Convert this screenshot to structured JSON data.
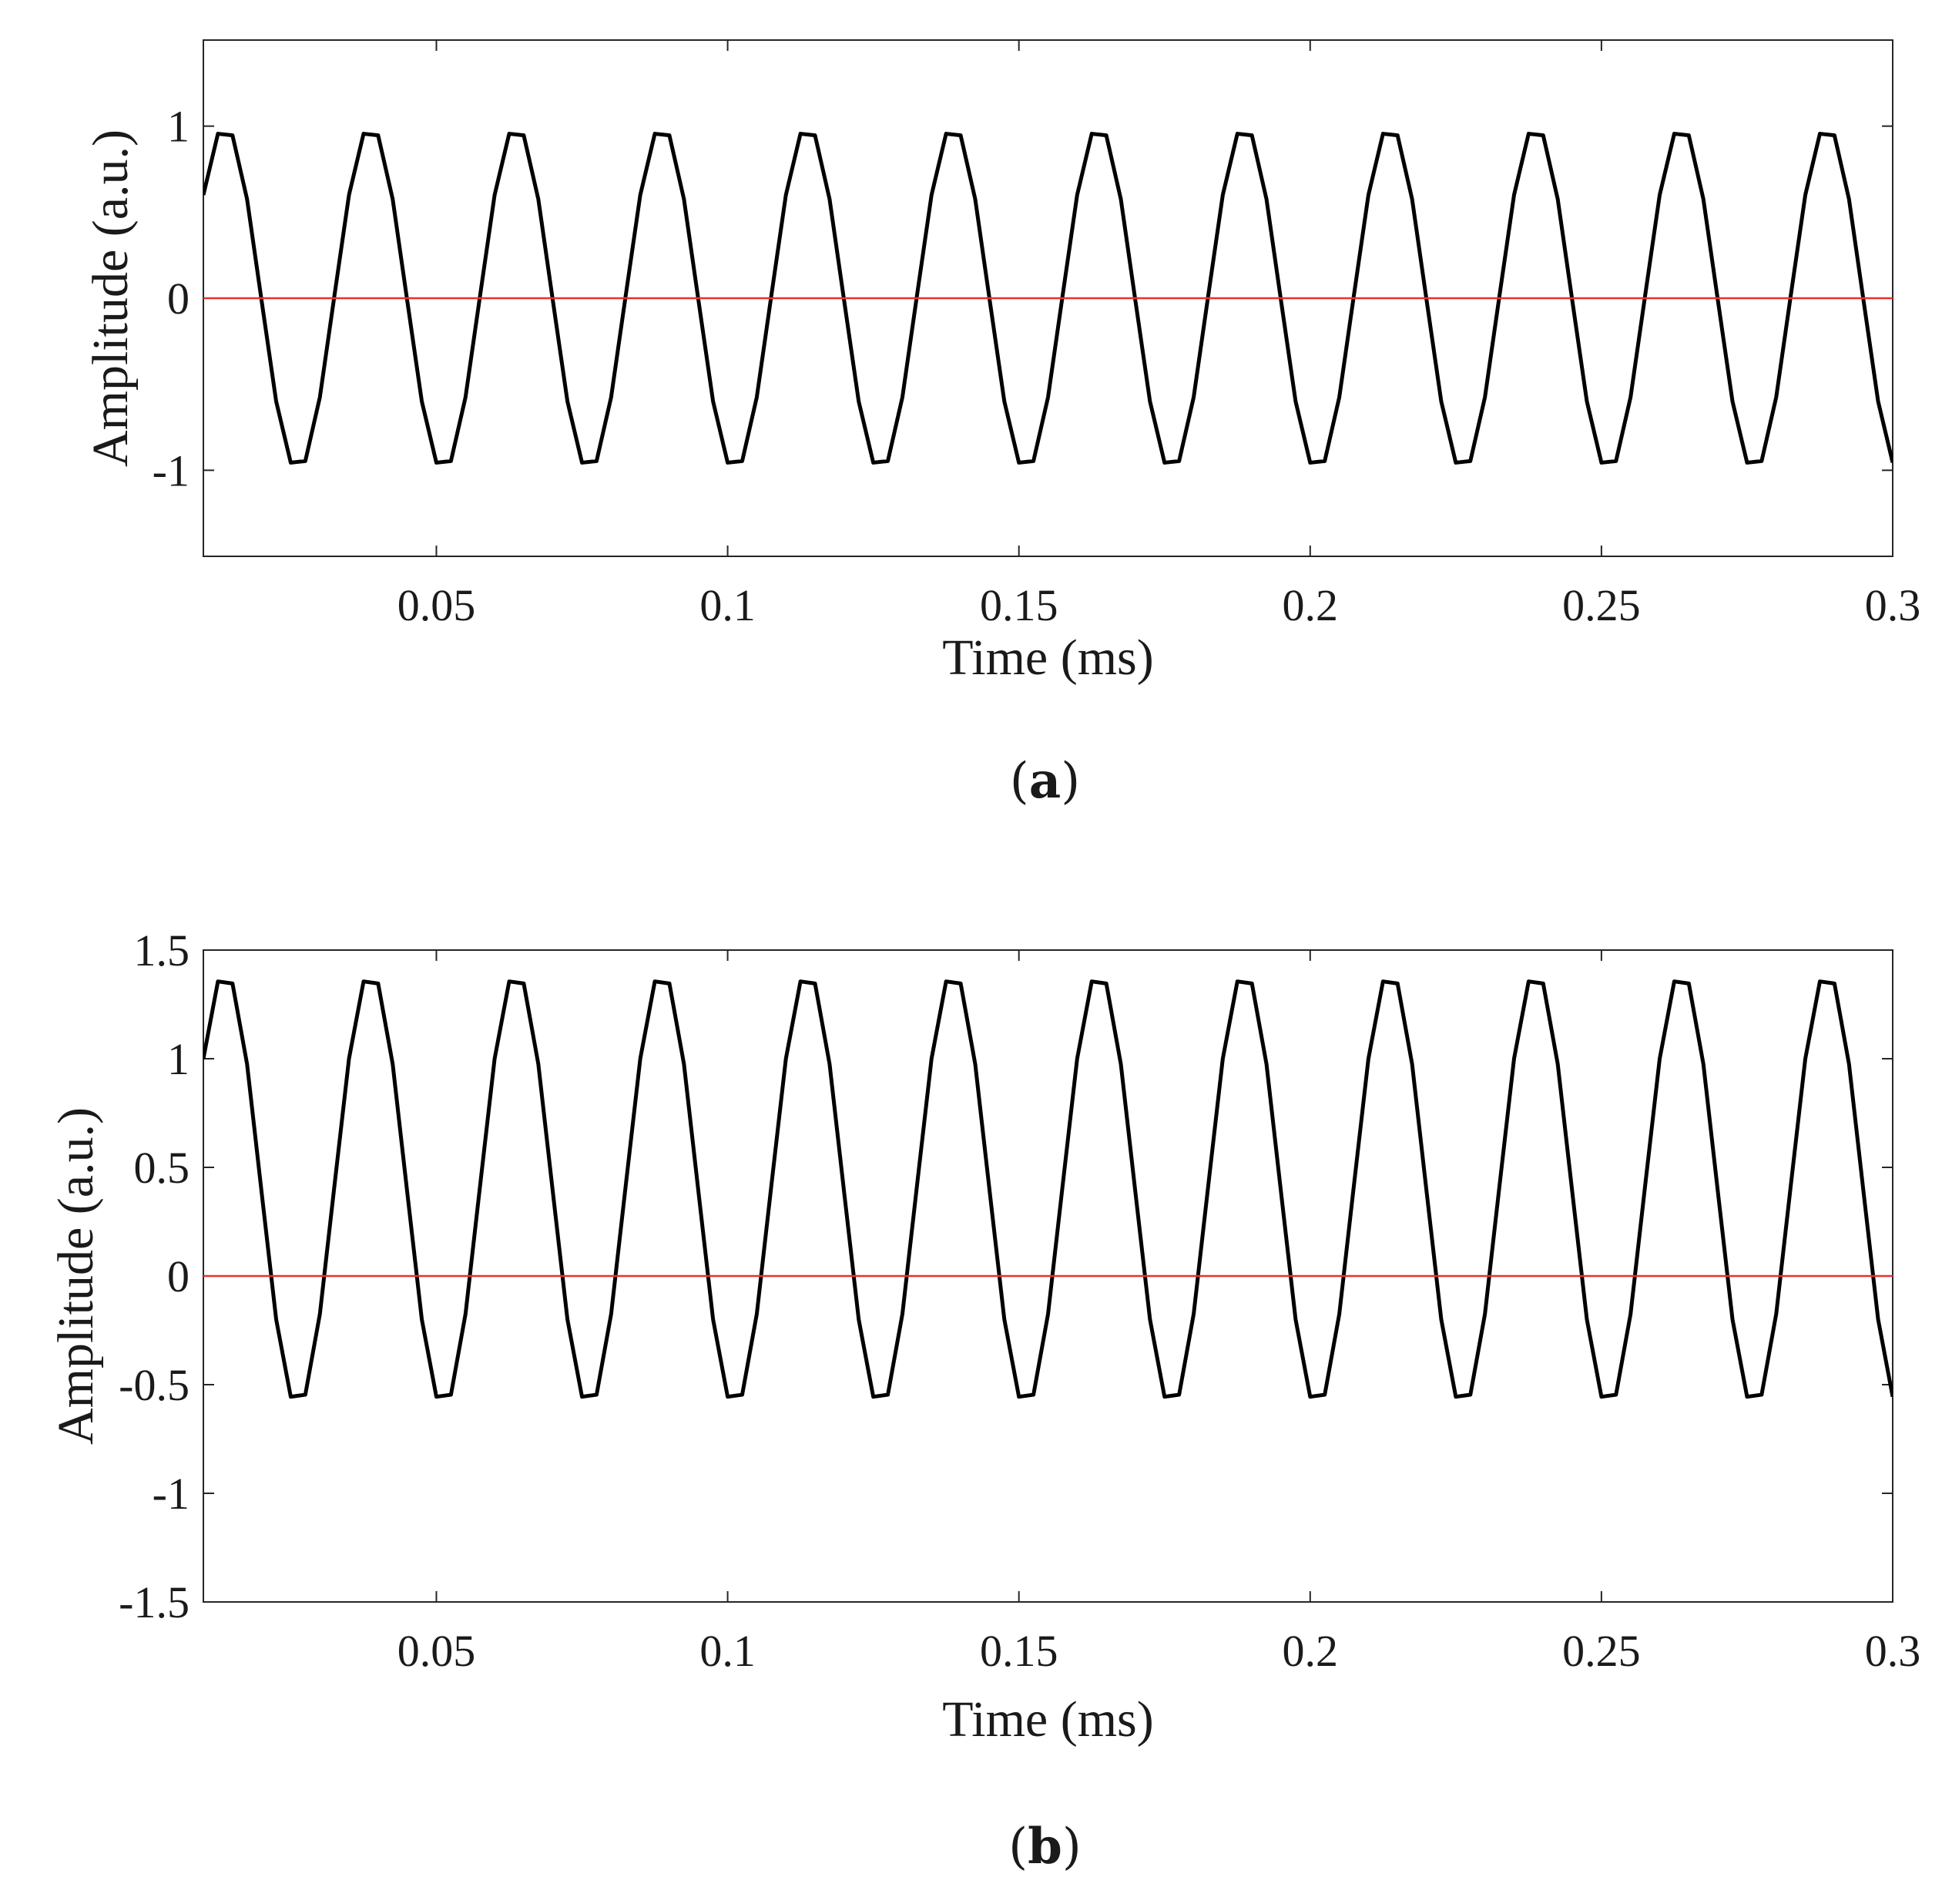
{
  "chart_data": [
    {
      "type": "line",
      "panel_label": "a",
      "xlabel": "Time (ms)",
      "ylabel": "Amplitude (a.u.)",
      "xlim": [
        0.01,
        0.3
      ],
      "ylim": [
        -1.5,
        1.5
      ],
      "xticks": [
        0.05,
        0.1,
        0.15,
        0.2,
        0.25,
        0.3
      ],
      "xtick_labels": [
        "0.05",
        "0.1",
        "0.15",
        "0.2",
        "0.25",
        "0.3"
      ],
      "yticks": [
        -1,
        0,
        1
      ],
      "ytick_labels": [
        "-1",
        "0",
        "1"
      ],
      "grid": false,
      "series": [
        {
          "color": "#000000",
          "description": "sinusoid, frequency 40 kHz (period 0.025 ms), amplitude 1, offset 0, sampled every 0.0025 ms",
          "frequency_khz": 40,
          "amplitude": 1,
          "offset": 0,
          "phase_rad": 0.6435,
          "sample_step_ms": 0.0025
        },
        {
          "color": "#e8312f",
          "description": "constant zero reference line",
          "constant": 0
        }
      ]
    },
    {
      "type": "line",
      "panel_label": "b",
      "xlabel": "Time (ms)",
      "ylabel": "Amplitude (a.u.)",
      "xlim": [
        0.01,
        0.3
      ],
      "ylim": [
        -1.5,
        1.5
      ],
      "xticks": [
        0.05,
        0.1,
        0.15,
        0.2,
        0.25,
        0.3
      ],
      "xtick_labels": [
        "0.05",
        "0.1",
        "0.15",
        "0.2",
        "0.25",
        "0.3"
      ],
      "yticks": [
        -1.5,
        -1,
        -0.5,
        0,
        0.5,
        1,
        1.5
      ],
      "ytick_labels": [
        "-1.5",
        "-1",
        "-0.5",
        "0",
        "0.5",
        "1",
        "1.5"
      ],
      "grid": false,
      "series": [
        {
          "color": "#000000",
          "description": "sinusoid, frequency 40 kHz (period 0.025 ms), amplitude 1, offset 0.4, sampled every 0.0025 ms",
          "frequency_khz": 40,
          "amplitude": 1,
          "offset": 0.4,
          "phase_rad": 0.6435,
          "sample_step_ms": 0.0025
        },
        {
          "color": "#e8312f",
          "description": "constant zero reference line",
          "constant": 0
        }
      ]
    }
  ]
}
